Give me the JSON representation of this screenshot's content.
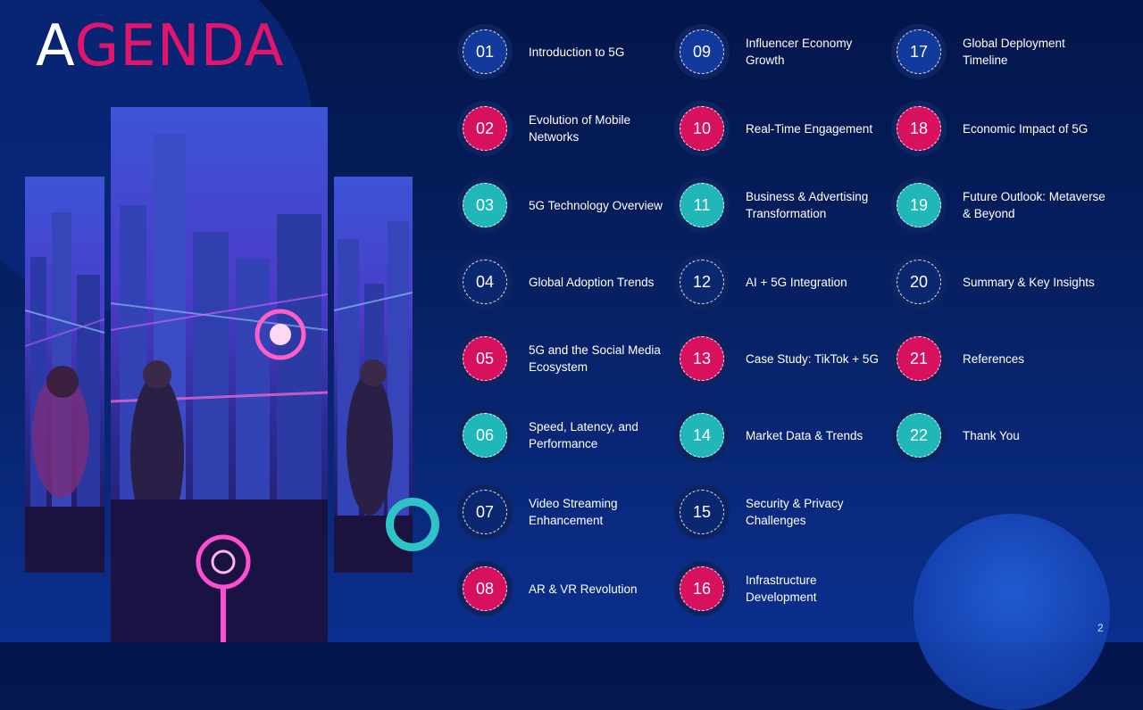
{
  "slide": {
    "title_first_letter": "A",
    "title_rest": "GENDA",
    "page_number": "2"
  },
  "colors": {
    "pink": "#d8115f",
    "blue": "#123a9c",
    "teal": "#21b7b8",
    "navy": "#0a2770"
  },
  "agenda": [
    {
      "number": "01",
      "label": "Introduction to 5G",
      "color": "blue"
    },
    {
      "number": "02",
      "label": "Evolution of Mobile Networks",
      "color": "pink"
    },
    {
      "number": "03",
      "label": "5G Technology Overview",
      "color": "teal"
    },
    {
      "number": "04",
      "label": "Global Adoption Trends",
      "color": "navy"
    },
    {
      "number": "05",
      "label": "5G and the Social Media Ecosystem",
      "color": "pink"
    },
    {
      "number": "06",
      "label": "Speed, Latency, and Performance",
      "color": "teal"
    },
    {
      "number": "07",
      "label": "Video Streaming Enhancement",
      "color": "navy"
    },
    {
      "number": "08",
      "label": "AR & VR Revolution",
      "color": "pink"
    },
    {
      "number": "09",
      "label": "Influencer Economy Growth",
      "color": "blue"
    },
    {
      "number": "10",
      "label": "Real-Time Engagement",
      "color": "pink"
    },
    {
      "number": "11",
      "label": "Business & Advertising Transformation",
      "color": "teal"
    },
    {
      "number": "12",
      "label": "AI + 5G Integration",
      "color": "navy"
    },
    {
      "number": "13",
      "label": "Case Study: TikTok + 5G",
      "color": "pink"
    },
    {
      "number": "14",
      "label": "Market Data & Trends",
      "color": "teal"
    },
    {
      "number": "15",
      "label": "Security & Privacy Challenges",
      "color": "navy"
    },
    {
      "number": "16",
      "label": "Infrastructure Development",
      "color": "pink"
    },
    {
      "number": "17",
      "label": "Global Deployment Timeline",
      "color": "blue"
    },
    {
      "number": "18",
      "label": "Economic Impact of 5G",
      "color": "pink"
    },
    {
      "number": "19",
      "label": "Future Outlook: Metaverse & Beyond",
      "color": "teal"
    },
    {
      "number": "20",
      "label": "Summary & Key Insights",
      "color": "navy"
    },
    {
      "number": "21",
      "label": "References",
      "color": "pink"
    },
    {
      "number": "22",
      "label": "Thank You",
      "color": "teal"
    }
  ]
}
